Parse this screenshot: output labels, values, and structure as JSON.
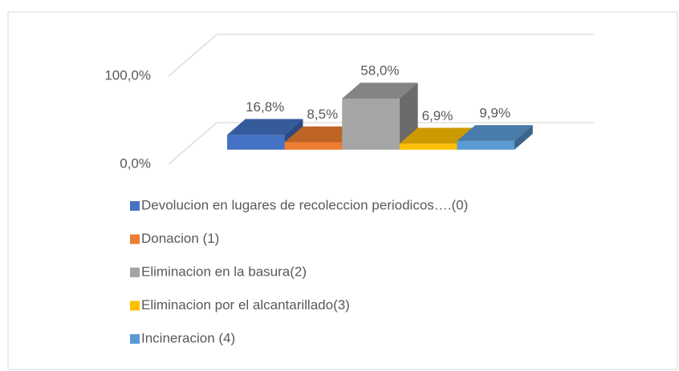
{
  "chart_data": {
    "type": "bar3d",
    "series": [
      {
        "name": "Devolucion en lugares de recoleccion periodicos….(0)",
        "color": "#4472c4",
        "values": [
          16.8
        ],
        "value_labels": [
          "16,8%"
        ]
      },
      {
        "name": "Donacion (1)",
        "color": "#ed7d31",
        "values": [
          8.5
        ],
        "value_labels": [
          "8,5%"
        ]
      },
      {
        "name": "Eliminacion en la basura(2)",
        "color": "#a5a5a5",
        "values": [
          58.0
        ],
        "value_labels": [
          "58,0%"
        ]
      },
      {
        "name": "Eliminacion por el alcantarillado(3)",
        "color": "#ffc000",
        "values": [
          6.9
        ],
        "value_labels": [
          "6,9%"
        ]
      },
      {
        "name": "Incineracion (4)",
        "color": "#5b9bd5",
        "values": [
          9.9
        ],
        "value_labels": [
          "9,9%"
        ]
      }
    ],
    "ylim": [
      0,
      100
    ],
    "yticks": [
      {
        "value": 0,
        "label": "0,0%"
      },
      {
        "value": 100,
        "label": "100,0%"
      }
    ],
    "grid": true,
    "legend": "bottom"
  }
}
